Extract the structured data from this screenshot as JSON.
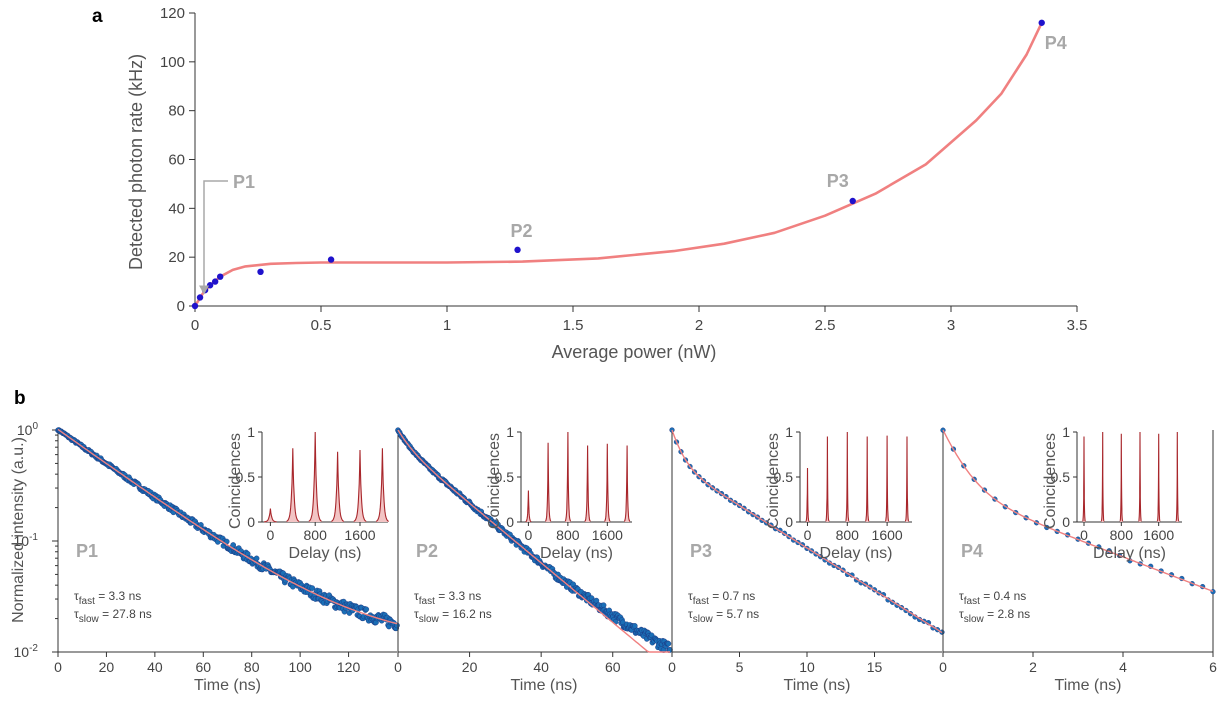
{
  "chart_data": [
    {
      "panel": "a",
      "type": "scatter",
      "xlabel": "Average power (nW)",
      "ylabel": "Detected photon rate (kHz)",
      "xlim": [
        0,
        3.5
      ],
      "ylim": [
        0,
        120
      ],
      "xticks": [
        0,
        0.5,
        1,
        1.5,
        2,
        2.5,
        3,
        3.5
      ],
      "yticks": [
        0,
        20,
        40,
        60,
        80,
        100,
        120
      ],
      "points": {
        "x": [
          0.0,
          0.02,
          0.04,
          0.06,
          0.08,
          0.1,
          0.26,
          0.54,
          1.28,
          2.61,
          3.36
        ],
        "y": [
          0.0,
          3.5,
          6.5,
          8.5,
          10,
          12,
          14,
          19,
          23,
          43,
          116
        ]
      },
      "fit_curve": {
        "x": [
          0.0,
          0.03,
          0.06,
          0.1,
          0.15,
          0.2,
          0.3,
          0.4,
          0.5,
          0.7,
          1.0,
          1.3,
          1.6,
          1.9,
          2.1,
          2.3,
          2.5,
          2.7,
          2.9,
          3.1,
          3.2,
          3.3,
          3.36
        ],
        "y": [
          0.0,
          5,
          8.5,
          12,
          14.8,
          16.2,
          17.3,
          17.6,
          17.8,
          17.8,
          17.8,
          18.2,
          19.5,
          22.5,
          25.5,
          30,
          37,
          46,
          58,
          76,
          87,
          103,
          116
        ]
      },
      "annotations": [
        {
          "text": "P1",
          "x": 0.02,
          "y": 3.5
        },
        {
          "text": "P2",
          "x": 1.28,
          "y": 23
        },
        {
          "text": "P3",
          "x": 2.61,
          "y": 43
        },
        {
          "text": "P4",
          "x": 3.36,
          "y": 116
        }
      ],
      "colors": {
        "points": "#1f12cc",
        "fit": "#f08080"
      }
    },
    {
      "panel": "b",
      "type": "scatter",
      "ylabel": "Normalized intensity (a.u.)",
      "yscale": "log",
      "ylim": [
        0.01,
        1
      ],
      "yticks_labels": [
        "10",
        "10",
        "10"
      ],
      "yticks_exponents": [
        "0",
        "-1",
        "-2"
      ],
      "colors": {
        "points": "#1b6fb6",
        "points_edge": "#1a2f7a",
        "fit": "#f08080",
        "inset": "#a8262b",
        "inset_fill": "#f2c4c4"
      },
      "subplots": [
        {
          "label": "P1",
          "xlabel": "Time (ns)",
          "xlim": [
            0,
            140
          ],
          "xticks": [
            0,
            20,
            40,
            60,
            80,
            100,
            120
          ],
          "tau_fast": "= 3.3 ns",
          "tau_slow": "= 27.8 ns",
          "decay": {
            "A1": 0.0,
            "t1": 3.3,
            "A2": 1.0,
            "t2": 27.8,
            "floor": 0.0115
          },
          "inset": {
            "xlabel": "Delay (ns)",
            "ylabel": "Coincidences",
            "xlim": [
              -150,
              2100
            ],
            "xticks": [
              0,
              800,
              1600
            ],
            "yticks": [
              0,
              0.5,
              1
            ],
            "peaks": [
              0,
              400,
              800,
              1200,
              1600,
              2000
            ],
            "heights": [
              0.15,
              0.82,
              1.0,
              0.78,
              0.8,
              0.82
            ],
            "width": 28
          }
        },
        {
          "label": "P2",
          "xlabel": "Time (ns)",
          "xlim": [
            0,
            76
          ],
          "xticks": [
            0,
            20,
            40,
            60
          ],
          "tau_fast": "= 3.3 ns",
          "tau_slow": "= 16.2 ns",
          "decay": {
            "A1": 0.25,
            "t1": 3.3,
            "A2": 0.75,
            "t2": 16.2,
            "floor": 0.0
          },
          "inset": {
            "xlabel": "Delay (ns)",
            "ylabel": "Coincidences",
            "xlim": [
              -150,
              2100
            ],
            "xticks": [
              0,
              800,
              1600
            ],
            "yticks": [
              0,
              0.5,
              1
            ],
            "peaks": [
              0,
              400,
              800,
              1200,
              1600,
              2000
            ],
            "heights": [
              0.35,
              0.88,
              1.0,
              0.85,
              0.87,
              0.85
            ],
            "width": 14
          }
        },
        {
          "label": "P3",
          "xlabel": "Time (ns)",
          "xlim": [
            0,
            20
          ],
          "xticks": [
            0,
            5,
            10,
            15
          ],
          "tau_fast": "= 0.7 ns",
          "tau_slow": "= 5.7 ns",
          "decay": {
            "A1": 0.5,
            "t1": 0.7,
            "A2": 0.5,
            "t2": 5.7,
            "floor": 0.0
          },
          "inset": {
            "xlabel": "Delay (ns)",
            "ylabel": "Coincidences",
            "xlim": [
              -150,
              2100
            ],
            "xticks": [
              0,
              800,
              1600
            ],
            "yticks": [
              0,
              0.5,
              1
            ],
            "peaks": [
              0,
              400,
              800,
              1200,
              1600,
              2000
            ],
            "heights": [
              0.6,
              0.95,
              1.0,
              0.95,
              0.96,
              0.95
            ],
            "width": 8
          }
        },
        {
          "label": "P4",
          "xlabel": "Time (ns)",
          "xlim": [
            0,
            6
          ],
          "xticks": [
            0,
            2,
            4,
            6
          ],
          "tau_fast": "= 0.4 ns",
          "tau_slow": "= 2.8 ns",
          "decay": {
            "A1": 0.7,
            "t1": 0.4,
            "A2": 0.3,
            "t2": 2.8,
            "floor": 0.0
          },
          "inset": {
            "xlabel": "Delay (ns)",
            "ylabel": "Coincidences",
            "xlim": [
              -150,
              2100
            ],
            "xticks": [
              0,
              800,
              1600
            ],
            "yticks": [
              0,
              0.5,
              1
            ],
            "peaks": [
              0,
              400,
              800,
              1200,
              1600,
              2000
            ],
            "heights": [
              0.95,
              1.0,
              0.98,
              1.0,
              0.98,
              1.0
            ],
            "width": 7
          }
        }
      ]
    }
  ]
}
